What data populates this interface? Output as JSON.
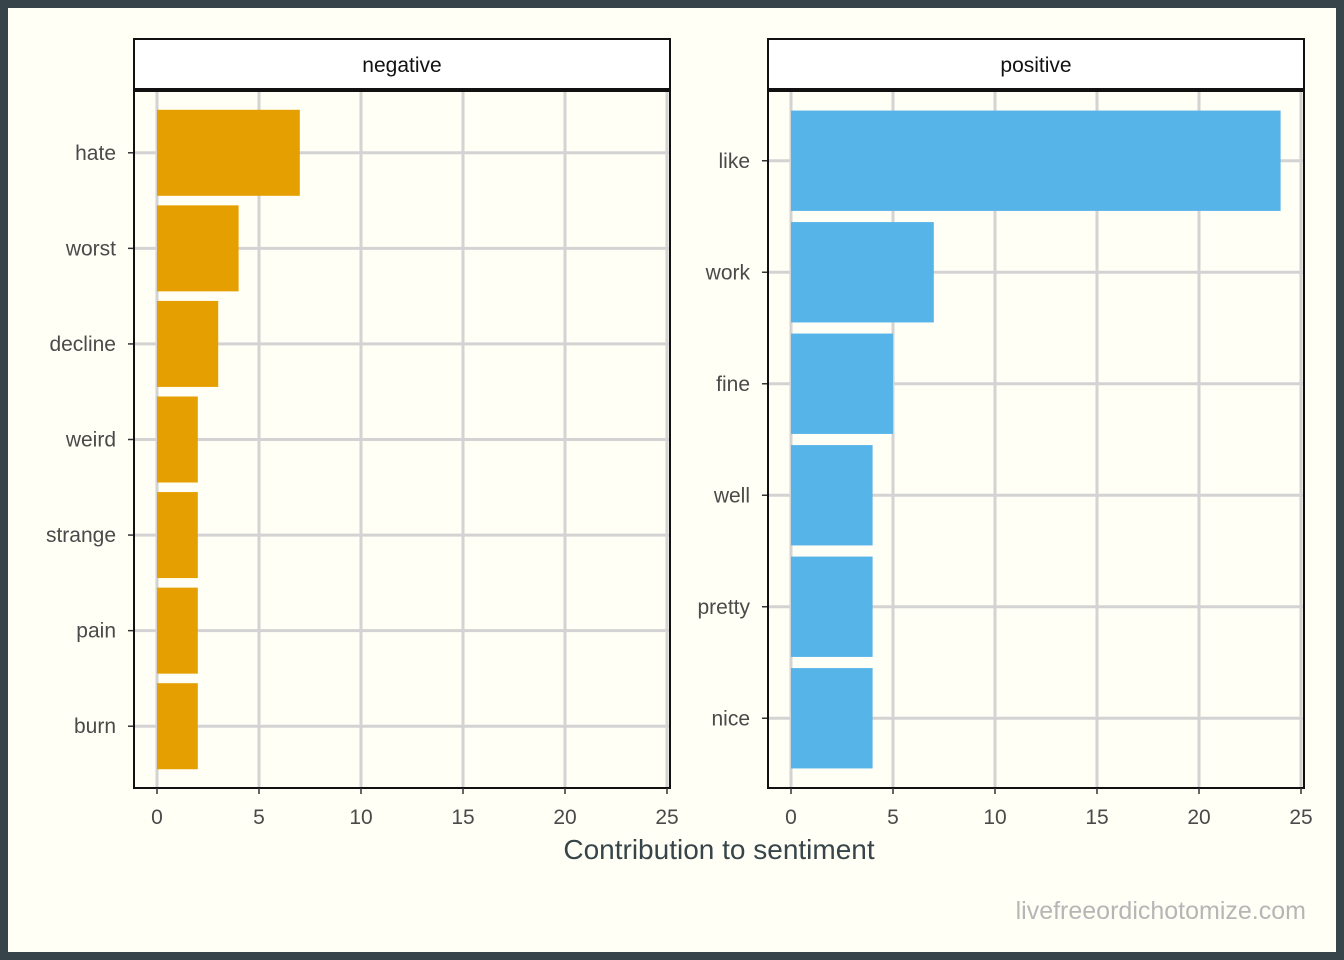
{
  "chart_data": {
    "type": "bar",
    "orientation": "horizontal",
    "xlabel": "Contribution to sentiment",
    "caption": "livefreeordichotomize.com",
    "xlim": [
      0,
      25
    ],
    "x_ticks": [
      0,
      5,
      10,
      15,
      20,
      25
    ],
    "grid": true,
    "facets": [
      {
        "name": "negative",
        "color": "#E69F00",
        "categories": [
          "hate",
          "worst",
          "decline",
          "weird",
          "strange",
          "pain",
          "burn"
        ],
        "values": [
          7,
          4,
          3,
          2,
          2,
          2,
          2
        ]
      },
      {
        "name": "positive",
        "color": "#56B4E9",
        "categories": [
          "like",
          "work",
          "fine",
          "well",
          "pretty",
          "nice"
        ],
        "values": [
          24,
          7,
          5,
          4,
          4,
          4
        ]
      }
    ]
  }
}
